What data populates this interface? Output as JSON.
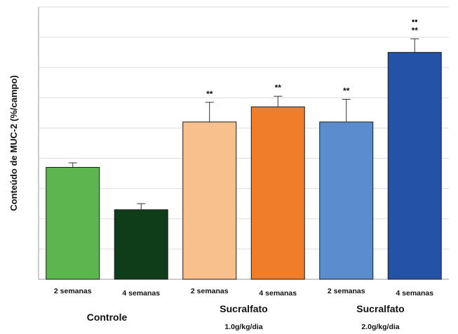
{
  "chart_data": {
    "type": "bar",
    "title": "",
    "ylabel": "Conteúdo de MUC-2 (%/campo)",
    "xlabel": "",
    "ylim": [
      0,
      9
    ],
    "grid": true,
    "categories": [
      "2 semanas",
      "4 semanas",
      "2 semanas",
      "4 semanas",
      "2 semanas",
      "4 semanas"
    ],
    "groups": [
      {
        "label": "Controle",
        "sublabel": "",
        "members": [
          0,
          1
        ]
      },
      {
        "label": "Sucralfato",
        "sublabel": "1.0g/kg/dia",
        "members": [
          2,
          3
        ]
      },
      {
        "label": "Sucralfato",
        "sublabel": "2.0g/kg/dia",
        "members": [
          4,
          5
        ]
      }
    ],
    "values": [
      3.7,
      2.3,
      5.2,
      5.7,
      5.2,
      7.5
    ],
    "errors": [
      0.15,
      0.2,
      0.65,
      0.35,
      0.75,
      0.45
    ],
    "significance": [
      "",
      "",
      "**",
      "**",
      "**",
      "**"
    ],
    "significance_extra": [
      "",
      "",
      "",
      "",
      "",
      "••"
    ],
    "colors": [
      "#5cb54e",
      "#0f3d1a",
      "#f8c08c",
      "#f07d2a",
      "#5b8ccc",
      "#2452a4"
    ]
  }
}
